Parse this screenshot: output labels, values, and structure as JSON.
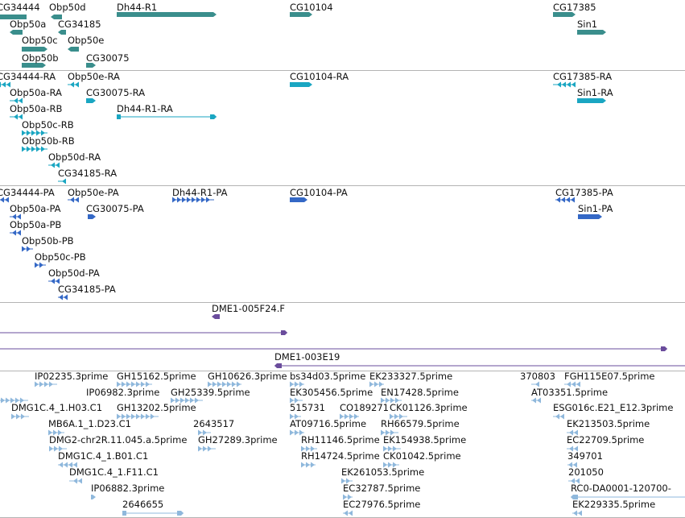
{
  "colors": {
    "gene": "#3a8e8c",
    "mrna": "#1aa6c2",
    "cds": "#3468c6",
    "clone": "#6a4c9c",
    "est": "#8fb8dc",
    "separator": "#b4b4b4",
    "text": "#111111"
  },
  "tiers": {
    "genes": {
      "name": "genes-tier",
      "features": [
        {
          "name": "gene-cg34444",
          "label": "CG34444"
        },
        {
          "name": "gene-obp50d",
          "label": "Obp50d"
        },
        {
          "name": "gene-dh44-r1",
          "label": "Dh44-R1"
        },
        {
          "name": "gene-cg10104",
          "label": "CG10104"
        },
        {
          "name": "gene-cg17385",
          "label": "CG17385"
        },
        {
          "name": "gene-obp50a",
          "label": "Obp50a"
        },
        {
          "name": "gene-cg34185",
          "label": "CG34185"
        },
        {
          "name": "gene-sin1",
          "label": "Sin1"
        },
        {
          "name": "gene-obp50c",
          "label": "Obp50c"
        },
        {
          "name": "gene-obp50e",
          "label": "Obp50e"
        },
        {
          "name": "gene-obp50b",
          "label": "Obp50b"
        },
        {
          "name": "gene-cg30075",
          "label": "CG30075"
        }
      ]
    },
    "transcripts": {
      "name": "transcripts-tier",
      "features": [
        {
          "name": "transcript-cg34444-ra",
          "label": "CG34444-RA"
        },
        {
          "name": "transcript-obp50e-ra",
          "label": "Obp50e-RA"
        },
        {
          "name": "transcript-cg10104-ra",
          "label": "CG10104-RA"
        },
        {
          "name": "transcript-cg17385-ra",
          "label": "CG17385-RA"
        },
        {
          "name": "transcript-obp50a-ra",
          "label": "Obp50a-RA"
        },
        {
          "name": "transcript-cg30075-ra",
          "label": "CG30075-RA"
        },
        {
          "name": "transcript-sin1-ra",
          "label": "Sin1-RA"
        },
        {
          "name": "transcript-obp50a-rb",
          "label": "Obp50a-RB"
        },
        {
          "name": "transcript-dh44-r1-ra",
          "label": "Dh44-R1-RA"
        },
        {
          "name": "transcript-obp50c-rb",
          "label": "Obp50c-RB"
        },
        {
          "name": "transcript-obp50b-rb",
          "label": "Obp50b-RB"
        },
        {
          "name": "transcript-obp50d-ra",
          "label": "Obp50d-RA"
        },
        {
          "name": "transcript-cg34185-ra",
          "label": "CG34185-RA"
        }
      ]
    },
    "proteins": {
      "name": "proteins-tier",
      "features": [
        {
          "name": "protein-cg34444-pa",
          "label": "CG34444-PA"
        },
        {
          "name": "protein-obp50e-pa",
          "label": "Obp50e-PA"
        },
        {
          "name": "protein-dh44-r1-pa",
          "label": "Dh44-R1-PA"
        },
        {
          "name": "protein-cg10104-pa",
          "label": "CG10104-PA"
        },
        {
          "name": "protein-cg17385-pa",
          "label": "CG17385-PA"
        },
        {
          "name": "protein-obp50a-pa",
          "label": "Obp50a-PA"
        },
        {
          "name": "protein-cg30075-pa",
          "label": "CG30075-PA"
        },
        {
          "name": "protein-sin1-pa",
          "label": "Sin1-PA"
        },
        {
          "name": "protein-obp50a-pb",
          "label": "Obp50a-PB"
        },
        {
          "name": "protein-obp50b-pb",
          "label": "Obp50b-PB"
        },
        {
          "name": "protein-obp50c-pb",
          "label": "Obp50c-PB"
        },
        {
          "name": "protein-obp50d-pa",
          "label": "Obp50d-PA"
        },
        {
          "name": "protein-cg34185-pa",
          "label": "CG34185-PA"
        }
      ]
    },
    "clones": {
      "name": "clones-tier",
      "features": [
        {
          "name": "clone-dme1-005f24f",
          "label": "DME1-005F24.F"
        },
        {
          "name": "clone-unlabeled-1",
          "label": ""
        },
        {
          "name": "clone-unlabeled-2",
          "label": ""
        },
        {
          "name": "clone-dme1-003e19",
          "label": "DME1-003E19"
        }
      ]
    },
    "ests": {
      "name": "ests-tier",
      "features": [
        {
          "name": "est-ip02235",
          "label": "IP02235.3prime"
        },
        {
          "name": "est-gh15162",
          "label": "GH15162.5prime"
        },
        {
          "name": "est-gh10626",
          "label": "GH10626.3prime"
        },
        {
          "name": "est-bs34d03",
          "label": "bs34d03.5prime"
        },
        {
          "name": "est-ek233327",
          "label": "EK233327.5prime"
        },
        {
          "name": "est-370803",
          "label": "370803"
        },
        {
          "name": "est-fgh115e07",
          "label": "FGH115E07.5prime"
        },
        {
          "name": "est-ip06982",
          "label": "IP06982.3prime"
        },
        {
          "name": "est-gh25339",
          "label": "GH25339.5prime"
        },
        {
          "name": "est-ek305456",
          "label": "EK305456.5prime"
        },
        {
          "name": "est-en17428",
          "label": "EN17428.5prime"
        },
        {
          "name": "est-at03351",
          "label": "AT03351.5prime"
        },
        {
          "name": "est-dmg1c4-h03",
          "label": "DMG1C.4_1.H03.C1"
        },
        {
          "name": "est-gh13202",
          "label": "GH13202.5prime"
        },
        {
          "name": "est-515731",
          "label": "515731"
        },
        {
          "name": "est-co189271",
          "label": "CO189271"
        },
        {
          "name": "est-ck01126",
          "label": "CK01126.3prime"
        },
        {
          "name": "est-esg016c",
          "label": "ESG016c.E21_E12.3prime"
        },
        {
          "name": "est-mb6a1-d23",
          "label": "MB6A.1_1.D23.C1"
        },
        {
          "name": "est-2643517",
          "label": "2643517"
        },
        {
          "name": "est-at09716",
          "label": "AT09716.5prime"
        },
        {
          "name": "est-rh66579",
          "label": "RH66579.5prime"
        },
        {
          "name": "est-ek213503",
          "label": "EK213503.5prime"
        },
        {
          "name": "est-dmg2-chr2r",
          "label": "DMG2-chr2R.11.045.a.5prime"
        },
        {
          "name": "est-gh27289",
          "label": "GH27289.3prime"
        },
        {
          "name": "est-rh11146",
          "label": "RH11146.5prime"
        },
        {
          "name": "est-ek154938",
          "label": "EK154938.5prime"
        },
        {
          "name": "est-ec22709",
          "label": "EC22709.5prime"
        },
        {
          "name": "est-dmg1c4-b01",
          "label": "DMG1C.4_1.B01.C1"
        },
        {
          "name": "est-rh14724",
          "label": "RH14724.5prime"
        },
        {
          "name": "est-ck01042",
          "label": "CK01042.5prime"
        },
        {
          "name": "est-349701",
          "label": "349701"
        },
        {
          "name": "est-dmg1c4-f11",
          "label": "DMG1C.4_1.F11.C1"
        },
        {
          "name": "est-ek261053",
          "label": "EK261053.5prime"
        },
        {
          "name": "est-201050",
          "label": "201050"
        },
        {
          "name": "est-ip06882",
          "label": "IP06882.3prime"
        },
        {
          "name": "est-ec32787",
          "label": "EC32787.5prime"
        },
        {
          "name": "est-rc0-da0001",
          "label": "RC0-DA0001-120700-"
        },
        {
          "name": "est-2646655",
          "label": "2646655"
        },
        {
          "name": "est-ec27976",
          "label": "EC27976.5prime"
        },
        {
          "name": "est-ek229335",
          "label": "EK229335.5prime"
        }
      ]
    }
  }
}
